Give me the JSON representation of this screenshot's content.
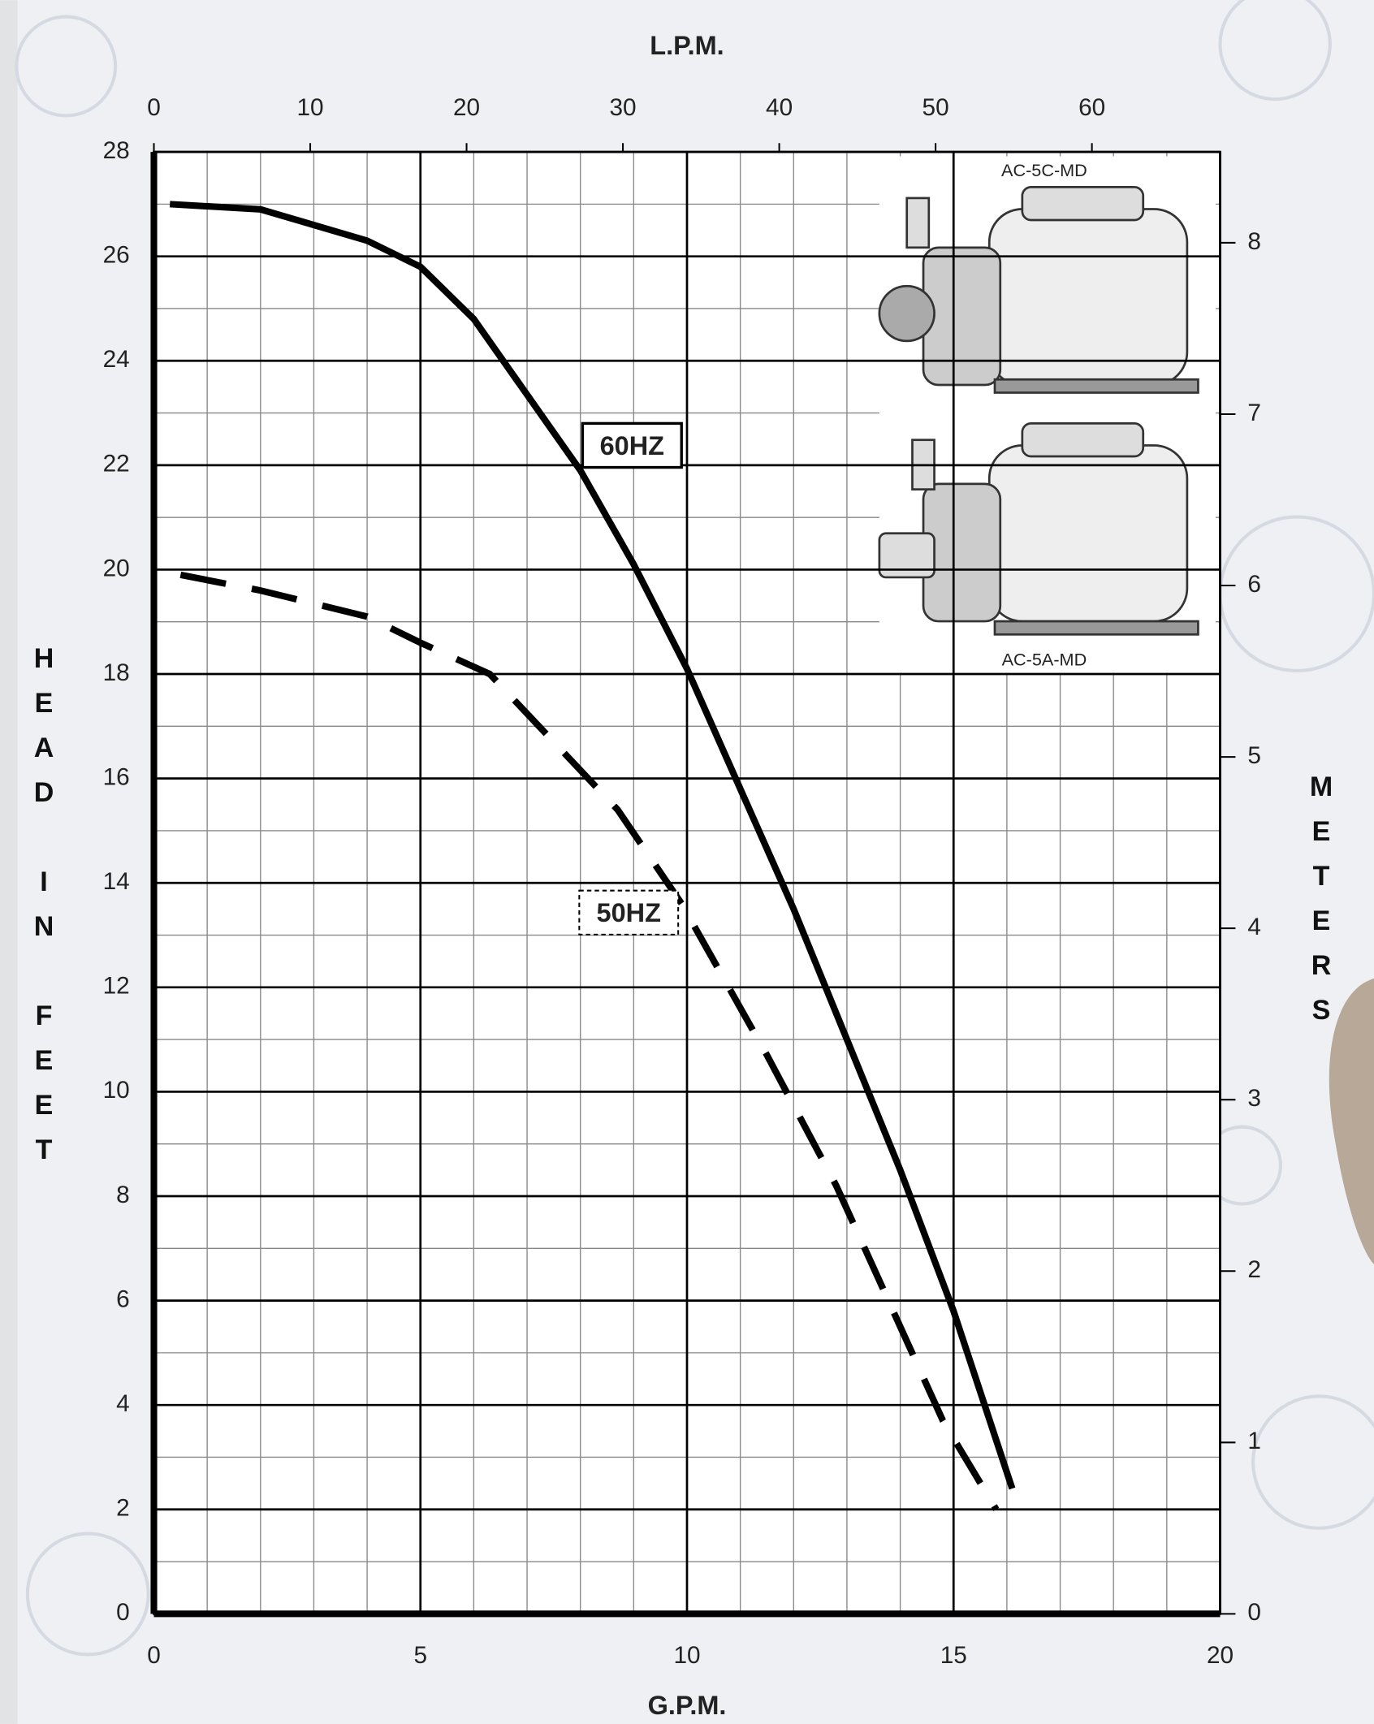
{
  "chart_data": {
    "type": "line",
    "x_label": "G.P.M.",
    "x2_label": "L.P.M.",
    "y_label": "HEAD IN FEET",
    "y2_label": "METERS",
    "xlim": [
      0,
      20
    ],
    "xticks": [
      0,
      5,
      10,
      15,
      20
    ],
    "x2lim": [
      0,
      68.2
    ],
    "x2ticks": [
      0,
      10,
      20,
      30,
      40,
      50,
      60
    ],
    "ylim": [
      0,
      28
    ],
    "yticks": [
      0,
      2,
      4,
      6,
      8,
      10,
      12,
      14,
      16,
      18,
      20,
      22,
      24,
      26,
      28
    ],
    "y2lim": [
      0,
      8.53
    ],
    "y2ticks": [
      0,
      1,
      2,
      3,
      4,
      5,
      6,
      7,
      8
    ],
    "grid": true,
    "series": [
      {
        "name": "60HZ",
        "color": "#000000",
        "style": "solid",
        "x": [
          0.3,
          2,
          4,
          5,
          6,
          8,
          9,
          10,
          12,
          14,
          15,
          16.1
        ],
        "values": [
          27,
          26.9,
          26.3,
          25.8,
          24.8,
          21.9,
          20.1,
          18.1,
          13.5,
          8.5,
          5.8,
          2.4
        ]
      },
      {
        "name": "50HZ",
        "color": "#000000",
        "style": "dashed",
        "x": [
          0.5,
          2,
          4,
          5,
          6.3,
          8.7,
          9.9,
          11.5,
          12.8,
          14.8,
          15.8
        ],
        "values": [
          19.9,
          19.6,
          19.1,
          18.6,
          18.0,
          15.4,
          13.6,
          10.7,
          8.2,
          3.7,
          2.0
        ]
      }
    ],
    "annotations": [
      "AC-5C-MD",
      "AC-5A-MD"
    ]
  }
}
